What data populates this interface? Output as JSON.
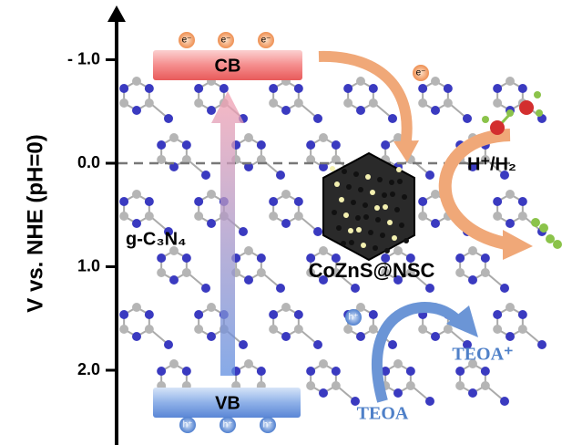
{
  "axis": {
    "label": "V vs. NHE (pH=0)",
    "ticks": [
      {
        "value": -1.0,
        "label": "- 1.0"
      },
      {
        "value": 0.0,
        "label": "0.0"
      },
      {
        "value": 1.0,
        "label": "1.0"
      },
      {
        "value": 2.0,
        "label": "2.0"
      }
    ]
  },
  "bands": {
    "cb": "CB",
    "vb": "VB"
  },
  "electrons": [
    "e⁻",
    "e⁻",
    "e⁻",
    "e⁻"
  ],
  "holes": [
    "h⁺",
    "h⁺",
    "h⁺",
    "h⁺"
  ],
  "labels": {
    "redox": "H⁺/H₂",
    "semiconductor": "g-C₃N₄",
    "cocatalyst": "CoZnS@NSC",
    "donor": "TEOA",
    "donor_oxidized": "TEOA⁺"
  }
}
